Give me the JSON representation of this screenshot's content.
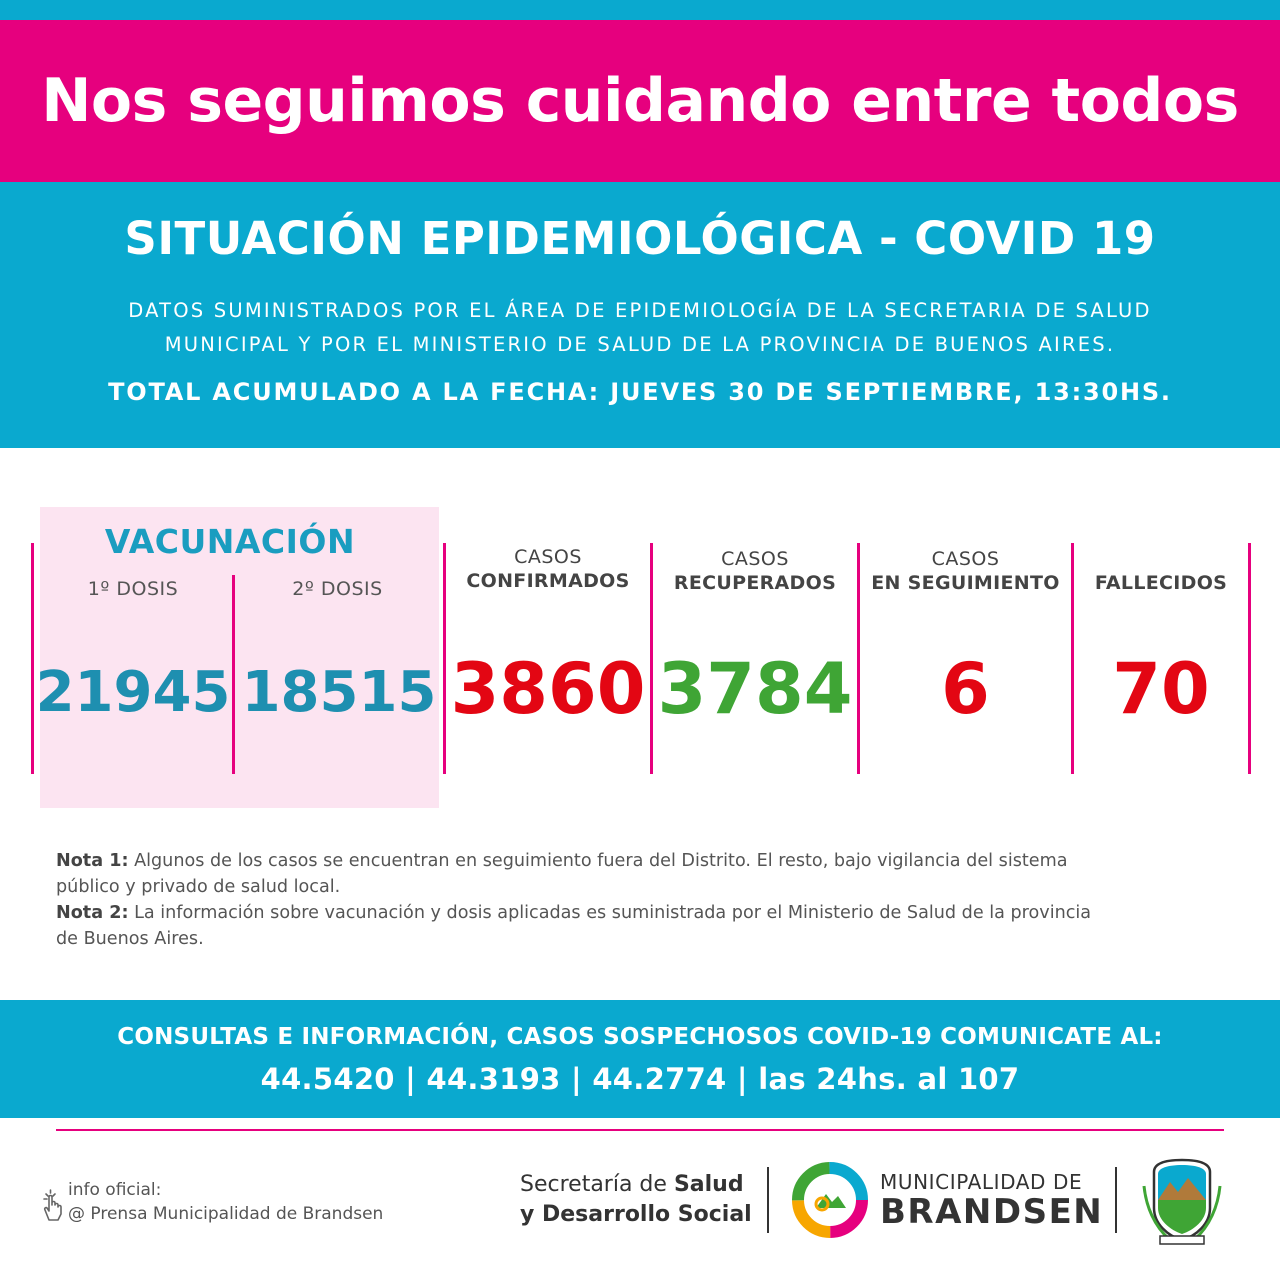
{
  "banner": {
    "title": "Nos seguimos cuidando entre todos"
  },
  "header": {
    "title": "SITUACIÓN EPIDEMIOLÓGICA - COVID 19",
    "source_line1": "DATOS SUMINISTRADOS POR EL ÁREA DE EPIDEMIOLOGÍA DE LA SECRETARIA DE SALUD",
    "source_line2": "MUNICIPAL Y POR EL MINISTERIO DE SALUD DE LA PROVINCIA DE BUENOS AIRES.",
    "total": "TOTAL ACUMULADO A LA FECHA: JUEVES 30 DE SEPTIEMBRE, 13:30HS."
  },
  "vacunacion": {
    "title": "VACUNACIÓN",
    "dose1_label": "1º DOSIS",
    "dose1_value": "21945",
    "dose2_label": "2º DOSIS",
    "dose2_value": "18515"
  },
  "stats": {
    "confirmados": {
      "label1": "CASOS",
      "label2": "CONFIRMADOS",
      "value": "3860"
    },
    "recuperados": {
      "label1": "CASOS",
      "label2": "RECUPERADOS",
      "value": "3784"
    },
    "seguimiento": {
      "label1": "CASOS",
      "label2": "EN SEGUIMIENTO",
      "value": "6"
    },
    "fallecidos": {
      "label2": "FALLECIDOS",
      "value": "70"
    }
  },
  "notes": {
    "note1_label": "Nota 1:",
    "note1_text": " Algunos de los casos se encuentran en seguimiento fuera del Distrito. El resto, bajo vigilancia del sistema público y privado de salud local.",
    "note2_label": "Nota 2:",
    "note2_text": " La información sobre vacunación y dosis aplicadas es suministrada por el Ministerio de Salud de la provincia de Buenos Aires."
  },
  "contact": {
    "line1": "CONSULTAS E INFORMACIÓN, CASOS SOSPECHOSOS COVID-19 COMUNICATE AL:",
    "line2": "44.5420 | 44.3193 | 44.2774 | las 24hs. al 107"
  },
  "footer": {
    "info_label": "info oficial:",
    "info_handle": "@ Prensa Municipalidad de Brandsen",
    "secretaria_prefix": "Secretaría de ",
    "secretaria_bold1": "Salud",
    "secretaria_bold2": "y Desarrollo Social",
    "muni_line1": "MUNICIPALIDAD DE",
    "muni_line2": "BRANDSEN"
  },
  "colors": {
    "pink": "#e6007e",
    "blue": "#0aa9cf",
    "teal_number": "#1e8fb0",
    "red_number": "#e30613",
    "green_number": "#3fa535",
    "vac_bg": "#fce4f1"
  },
  "icons": [
    "hand-pointer-icon",
    "municipal-logo-icon",
    "brandsen-shield-icon"
  ]
}
